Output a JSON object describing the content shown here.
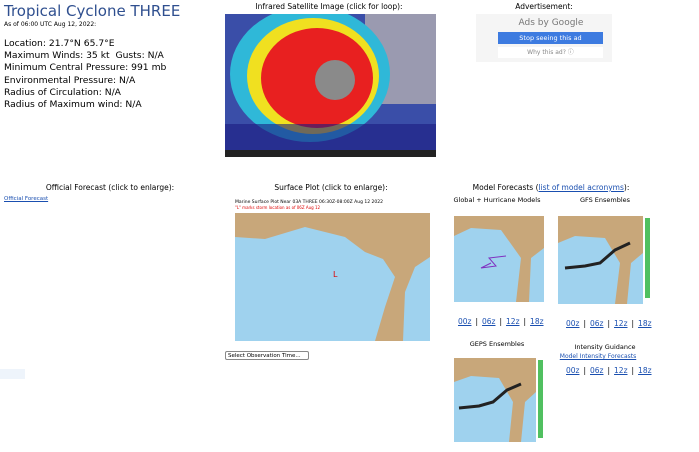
{
  "storm": {
    "title": "Tropical Cyclone THREE",
    "as_of": "As of 06:00 UTC Aug 12, 2022:",
    "details": [
      "Location: 21.7°N 65.7°E",
      "Maximum Winds: 35 kt  Gusts: N/A",
      "Minimum Central Pressure: 991 mb",
      "Environmental Pressure: N/A",
      "Radius of Circulation: N/A",
      "Radius of Maximum wind: N/A"
    ]
  },
  "satellite": {
    "heading": "Infrared Satellite Image (click for loop):"
  },
  "ad": {
    "heading": "Advertisement:",
    "brand": "Ads by Google",
    "stop": "Stop seeing this ad",
    "why": "Why this ad? ⓘ"
  },
  "official": {
    "heading": "Official Forecast (click to enlarge):",
    "link": "Official Forecast"
  },
  "surface": {
    "heading": "Surface Plot (click to enlarge):",
    "map_title": "Marine Surface Plot Near 03A THREE 06:30Z-08:00Z Aug 12 2022",
    "map_subtitle": "\"L\" marks storm location as of 06Z Aug 12",
    "storm_mark": "L",
    "select": "Select Observation Time..."
  },
  "models": {
    "heading_prefix": "Model Forecasts (",
    "heading_link": "list of model acronyms",
    "heading_suffix": "):",
    "global": "Global + Hurricane Models",
    "global_runs": [
      "00z",
      "06z",
      "12z",
      "18z"
    ],
    "gfs": "GFS Ensembles",
    "gfs_runs": [
      "00z",
      "06z",
      "12z",
      "18z"
    ],
    "geps": "GEPS Ensembles",
    "intensity": "Intensity Guidance",
    "intensity_link": "Model Intensity Forecasts",
    "intensity_runs": [
      "00z",
      "06z",
      "12z",
      "18z"
    ],
    "separator": "|"
  }
}
